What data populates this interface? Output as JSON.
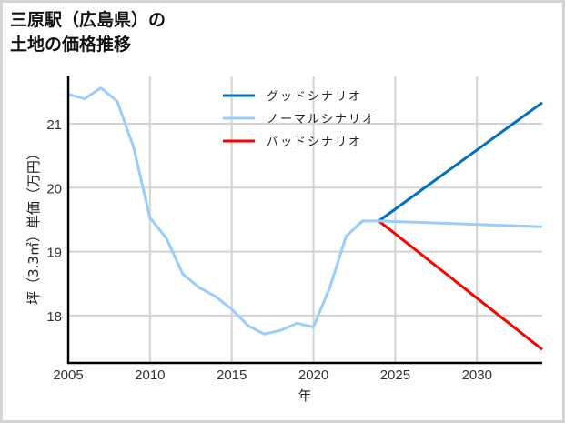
{
  "title_line1": "三原駅（広島県）の",
  "title_line2": "土地の価格推移",
  "chart_data": {
    "type": "line",
    "title": "三原駅（広島県）の土地の価格推移",
    "xlabel": "年",
    "ylabel": "坪（3.3㎡）単価（万円）",
    "xlim": [
      2005,
      2034
    ],
    "ylim": [
      17.25,
      21.7
    ],
    "grid": true,
    "legend_position": "upper center",
    "x_ticks": [
      2005,
      2010,
      2015,
      2020,
      2025,
      2030
    ],
    "y_ticks": [
      18,
      19,
      20,
      21
    ],
    "series": [
      {
        "name": "ノーマルシナリオ",
        "color": "#99ccff",
        "x": [
          2005,
          2006,
          2007,
          2008,
          2009,
          2010,
          2011,
          2012,
          2013,
          2014,
          2015,
          2016,
          2017,
          2018,
          2019,
          2020,
          2021,
          2022,
          2023,
          2024,
          2034
        ],
        "values": [
          21.46,
          21.39,
          21.56,
          21.35,
          20.63,
          19.53,
          19.21,
          18.65,
          18.44,
          18.3,
          18.1,
          17.84,
          17.71,
          17.77,
          17.88,
          17.82,
          18.44,
          19.24,
          19.48,
          19.48,
          19.39
        ]
      },
      {
        "name": "グッドシナリオ",
        "color": "#0070c0",
        "x": [
          2024,
          2034
        ],
        "values": [
          19.48,
          21.33
        ]
      },
      {
        "name": "バッドシナリオ",
        "color": "#ff0000",
        "x": [
          2024,
          2034
        ],
        "values": [
          19.48,
          17.47
        ]
      }
    ]
  },
  "legend": [
    {
      "label": "グッドシナリオ",
      "color": "#0070c0"
    },
    {
      "label": "ノーマルシナリオ",
      "color": "#99ccff"
    },
    {
      "label": "バッドシナリオ",
      "color": "#ff0000"
    }
  ],
  "axes": {
    "x_tick_labels": [
      "2005",
      "2010",
      "2015",
      "2020",
      "2025",
      "2030"
    ],
    "y_tick_labels": [
      "18",
      "19",
      "20",
      "21"
    ],
    "xlabel": "年",
    "ylabel": "坪（3.3㎡）単価（万円）"
  }
}
